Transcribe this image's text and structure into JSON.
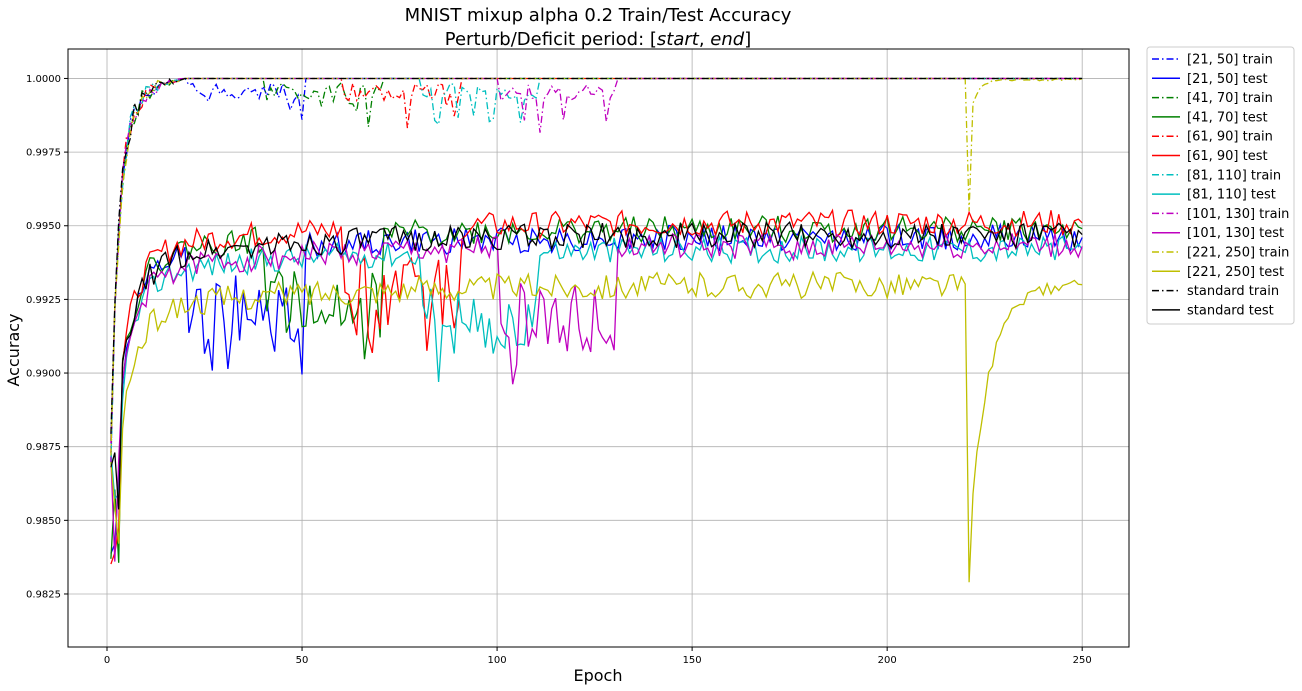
{
  "chart_data": {
    "type": "line",
    "title_line1": "MNIST mixup alpha 0.2 Train/Test Accuracy",
    "title_line2_prefix": "Perturb/Deficit period: [",
    "title_line2_start": "start",
    "title_line2_sep": ", ",
    "title_line2_end": "end",
    "title_line2_suffix": "]",
    "xlabel": "Epoch",
    "ylabel": "Accuracy",
    "xlim": [
      -10,
      262
    ],
    "ylim": [
      0.9807,
      1.001
    ],
    "xticks": [
      0,
      50,
      100,
      150,
      200,
      250
    ],
    "yticks": [
      0.9825,
      0.985,
      0.9875,
      0.99,
      0.9925,
      0.995,
      0.9975,
      1.0
    ],
    "ytick_labels": [
      "0.9825",
      "0.9850",
      "0.9875",
      "0.9900",
      "0.9925",
      "0.9950",
      "0.9975",
      "1.0000"
    ],
    "grid": true,
    "legend_position": "outside-right-top",
    "series": [
      {
        "name": "[21, 50] train",
        "color": "#0000ff",
        "style": "dashdot",
        "kind": "train",
        "start": 21,
        "end": 50,
        "final": 1.0,
        "seed": 11
      },
      {
        "name": "[21, 50] test",
        "color": "#0000ff",
        "style": "solid",
        "kind": "test",
        "start": 21,
        "end": 50,
        "final": 0.9946,
        "seed": 12
      },
      {
        "name": "[41, 70] train",
        "color": "#008000",
        "style": "dashdot",
        "kind": "train",
        "start": 41,
        "end": 70,
        "final": 1.0,
        "seed": 21
      },
      {
        "name": "[41, 70] test",
        "color": "#008000",
        "style": "solid",
        "kind": "test",
        "start": 41,
        "end": 70,
        "final": 0.9949,
        "seed": 22
      },
      {
        "name": "[61, 90] train",
        "color": "#ff0000",
        "style": "dashdot",
        "kind": "train",
        "start": 61,
        "end": 90,
        "final": 1.0,
        "seed": 31
      },
      {
        "name": "[61, 90] test",
        "color": "#ff0000",
        "style": "solid",
        "kind": "test",
        "start": 61,
        "end": 90,
        "final": 0.9951,
        "seed": 32
      },
      {
        "name": "[81, 110] train",
        "color": "#00bfbf",
        "style": "dashdot",
        "kind": "train",
        "start": 81,
        "end": 110,
        "final": 1.0,
        "seed": 41
      },
      {
        "name": "[81, 110] test",
        "color": "#00bfbf",
        "style": "solid",
        "kind": "test",
        "start": 81,
        "end": 110,
        "final": 0.9942,
        "seed": 42
      },
      {
        "name": "[101, 130] train",
        "color": "#bf00bf",
        "style": "dashdot",
        "kind": "train",
        "start": 101,
        "end": 130,
        "final": 1.0,
        "seed": 51
      },
      {
        "name": "[101, 130] test",
        "color": "#bf00bf",
        "style": "solid",
        "kind": "test",
        "start": 101,
        "end": 130,
        "final": 0.9943,
        "seed": 52
      },
      {
        "name": "[221, 250] train",
        "color": "#bfbf00",
        "style": "dashdot",
        "kind": "train",
        "start": 221,
        "end": 250,
        "final": 1.0,
        "seed": 61
      },
      {
        "name": "[221, 250] test",
        "color": "#bfbf00",
        "style": "solid",
        "kind": "test",
        "start": 221,
        "end": 250,
        "final": 0.993,
        "min": 0.9829,
        "seed": 62
      },
      {
        "name": "standard train",
        "color": "#000000",
        "style": "dashdot",
        "kind": "train",
        "start": null,
        "end": null,
        "final": 1.0,
        "seed": 71
      },
      {
        "name": "standard test",
        "color": "#000000",
        "style": "solid",
        "kind": "test",
        "start": null,
        "end": null,
        "final": 0.9947,
        "seed": 72
      }
    ]
  }
}
